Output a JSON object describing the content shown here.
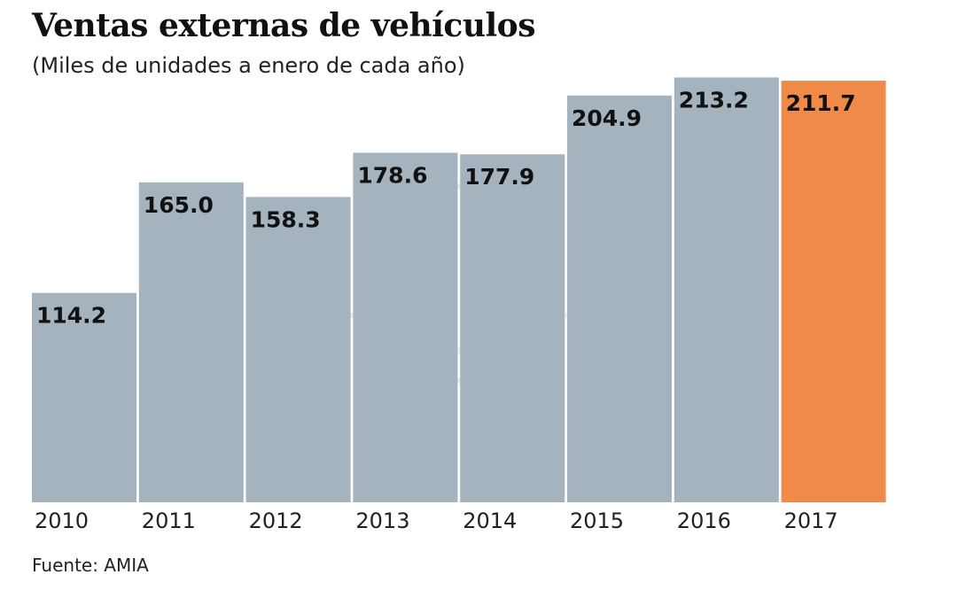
{
  "chart_data": {
    "type": "bar",
    "title": "Ventas externas de vehículos",
    "subtitle": "(Miles de unidades a enero de cada año)",
    "source": "Fuente: AMIA",
    "categories": [
      "2010",
      "2011",
      "2012",
      "2013",
      "2014",
      "2015",
      "2016",
      "2017"
    ],
    "values": [
      114.2,
      165.0,
      158.3,
      178.6,
      177.9,
      204.9,
      213.2,
      211.7
    ],
    "value_labels": [
      "114.2",
      "165.0",
      "158.3",
      "178.6",
      "177.9",
      "204.9",
      "213.2",
      "211.7"
    ],
    "xlabel": "",
    "ylabel": "",
    "ylim": [
      18,
      215
    ],
    "grid": false,
    "colors": {
      "default": "#a5b3be",
      "highlight": "#f08a48",
      "highlight_index": 7,
      "label": "#111111"
    }
  }
}
